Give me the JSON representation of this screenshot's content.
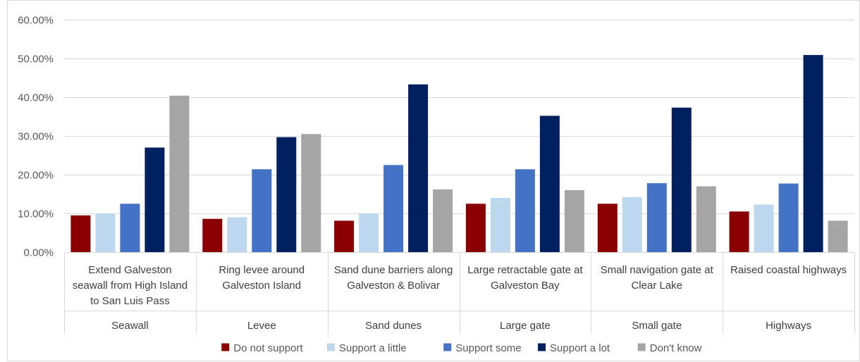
{
  "chart_data": {
    "type": "bar",
    "title": "",
    "xlabel": "",
    "ylabel": "",
    "ylim": [
      0,
      0.6
    ],
    "y_tick_step": 0.1,
    "y_tick_labels": [
      "0.00%",
      "10.00%",
      "20.00%",
      "30.00%",
      "40.00%",
      "50.00%",
      "60.00%"
    ],
    "grid": true,
    "legend_position": "bottom",
    "categories": [
      "Extend Galveston seawall from High Island to San Luis Pass",
      "Ring levee around Galveston Island",
      "Sand dune barriers along Galveston & Bolivar",
      "Large retractable gate at Galveston Bay",
      "Small navigation gate at Clear Lake",
      "Raised coastal highways"
    ],
    "category_lines": [
      [
        "Extend Galveston",
        "seawall from High Island",
        "to San Luis Pass"
      ],
      [
        "Ring levee around",
        "Galveston Island"
      ],
      [
        "Sand dune barriers along",
        "Galveston & Bolivar"
      ],
      [
        "Large retractable gate at",
        "Galveston Bay"
      ],
      [
        "Small navigation gate at",
        "Clear Lake"
      ],
      [
        "Raised coastal highways"
      ]
    ],
    "groups": [
      "Seawall",
      "Levee",
      "Sand dunes",
      "Large gate",
      "Small gate",
      "Highways"
    ],
    "series": [
      {
        "name": "Do not support",
        "color": "#8b0000",
        "values": [
          0.095,
          0.086,
          0.081,
          0.125,
          0.125,
          0.105
        ]
      },
      {
        "name": "Support a little",
        "color": "#bdd7ee",
        "values": [
          0.1,
          0.09,
          0.1,
          0.14,
          0.142,
          0.123
        ]
      },
      {
        "name": "Support some",
        "color": "#4472c4",
        "values": [
          0.125,
          0.214,
          0.225,
          0.214,
          0.178,
          0.177
        ]
      },
      {
        "name": "Support a lot",
        "color": "#002060",
        "values": [
          0.27,
          0.297,
          0.433,
          0.352,
          0.373,
          0.509
        ]
      },
      {
        "name": "Don't know",
        "color": "#a5a5a5",
        "values": [
          0.404,
          0.305,
          0.162,
          0.16,
          0.17,
          0.081
        ]
      }
    ]
  }
}
